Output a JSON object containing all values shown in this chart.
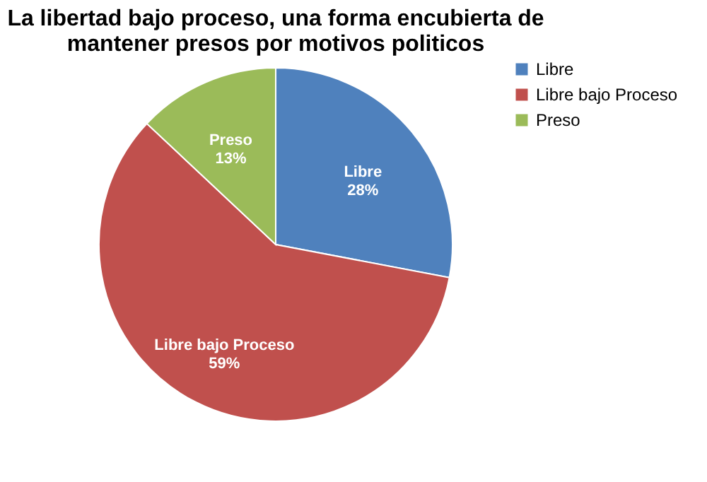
{
  "chart_data": {
    "type": "pie",
    "title": "La libertad bajo proceso, una forma encubierta de mantener presos por motivos politicos",
    "categories": [
      "Libre",
      "Libre bajo Proceso",
      "Preso"
    ],
    "values": [
      28,
      59,
      13
    ],
    "colors": [
      "#4f81bd",
      "#c0504d",
      "#9bbb59"
    ],
    "value_labels": [
      "28%",
      "59%",
      "13%"
    ],
    "legend": "right"
  }
}
